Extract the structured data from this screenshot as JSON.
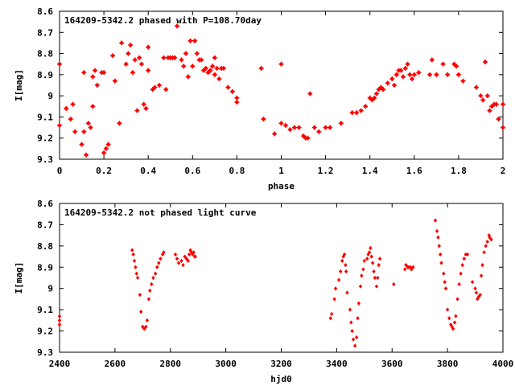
{
  "chart_data": [
    {
      "type": "scatter",
      "title": "164209-5342.2 phased with P=108.70day",
      "xlabel": "phase",
      "ylabel": "I[mag]",
      "xlim": [
        0,
        2
      ],
      "ylim": [
        8.6,
        9.3
      ],
      "y_inverted": true,
      "grid": false,
      "x_ticks": [
        "0",
        "0.2",
        "0.4",
        "0.6",
        "0.8",
        "1",
        "1.2",
        "1.4",
        "1.6",
        "1.8",
        "2"
      ],
      "y_ticks": [
        "8.6",
        "8.7",
        "8.8",
        "8.9",
        "9",
        "9.1",
        "9.2",
        "9.3"
      ],
      "marker_color": "#ff0000",
      "series": [
        {
          "x": [
            0.0,
            0.03,
            0.05,
            0.06,
            0.07,
            0.1,
            0.11,
            0.11,
            0.12,
            0.13,
            0.14,
            0.15,
            0.15,
            0.16,
            0.17,
            0.19,
            0.2,
            0.2,
            0.21,
            0.22,
            0.24,
            0.25,
            0.27,
            0.28,
            0.3,
            0.31,
            0.32,
            0.33,
            0.34,
            0.35,
            0.36,
            0.37,
            0.38,
            0.39,
            0.4,
            0.4,
            0.42,
            0.43,
            0.45,
            0.47,
            0.48,
            0.49,
            0.5,
            0.51,
            0.52,
            0.53,
            0.55,
            0.56,
            0.57,
            0.58,
            0.59,
            0.6,
            0.61,
            0.62,
            0.63,
            0.64,
            0.65,
            0.66,
            0.67,
            0.68,
            0.69,
            0.7,
            0.7,
            0.71,
            0.72,
            0.73,
            0.74,
            0.76,
            0.78,
            0.8,
            0.8,
            0.91,
            0.92,
            0.97,
            1.0,
            1.02,
            1.04,
            1.06,
            1.08,
            1.1,
            1.11,
            1.12,
            1.13,
            1.15,
            1.17,
            1.2,
            1.22,
            1.27,
            1.32,
            1.34,
            1.36,
            1.38,
            1.4,
            1.41,
            1.42,
            1.43,
            1.44,
            1.45,
            1.46,
            1.48,
            1.5,
            1.51,
            1.52,
            1.53,
            1.54,
            1.55,
            1.56,
            1.57,
            1.58,
            1.59,
            1.6,
            1.62,
            1.67,
            1.68,
            1.7,
            1.73,
            1.75,
            1.78,
            1.79,
            1.8,
            1.82,
            1.88,
            1.9,
            1.91,
            1.92,
            1.93,
            1.94,
            1.95,
            1.96,
            1.97,
            1.98,
            2.0,
            0.0,
            1.0,
            2.0
          ],
          "y": [
            8.85,
            9.06,
            9.11,
            9.04,
            9.17,
            9.23,
            8.89,
            9.17,
            9.28,
            9.13,
            9.15,
            8.91,
            9.05,
            8.88,
            8.95,
            8.89,
            9.27,
            8.89,
            9.25,
            9.23,
            8.81,
            8.93,
            9.13,
            8.75,
            8.85,
            8.8,
            8.76,
            8.89,
            8.83,
            9.07,
            8.82,
            8.85,
            9.04,
            9.06,
            8.88,
            8.77,
            8.97,
            8.96,
            8.95,
            8.82,
            8.97,
            8.82,
            8.82,
            8.82,
            8.82,
            8.67,
            8.83,
            8.86,
            8.8,
            8.91,
            8.74,
            8.86,
            8.74,
            8.8,
            8.83,
            8.83,
            8.88,
            8.87,
            8.89,
            8.88,
            8.86,
            8.9,
            8.82,
            8.87,
            8.92,
            8.87,
            8.87,
            8.96,
            8.98,
            9.01,
            9.03,
            8.87,
            9.11,
            9.18,
            9.13,
            9.14,
            9.16,
            9.15,
            9.15,
            9.19,
            9.2,
            9.2,
            8.99,
            9.15,
            9.17,
            9.15,
            9.15,
            9.13,
            9.08,
            9.08,
            9.07,
            9.05,
            9.01,
            9.02,
            9.01,
            8.99,
            8.97,
            8.96,
            8.97,
            8.94,
            8.92,
            8.95,
            8.9,
            8.88,
            8.88,
            8.91,
            8.87,
            8.85,
            8.9,
            8.92,
            8.9,
            8.89,
            8.9,
            8.83,
            8.9,
            8.85,
            8.9,
            8.85,
            8.86,
            8.9,
            8.93,
            8.96,
            9.0,
            9.02,
            8.84,
            9.0,
            9.07,
            9.05,
            9.04,
            9.04,
            9.11,
            9.04,
            9.14,
            8.85,
            9.15
          ]
        }
      ]
    },
    {
      "type": "scatter",
      "title": "164209-5342.2 not phased light curve",
      "xlabel": "hjd0",
      "ylabel": "I[mag]",
      "xlim": [
        2400,
        4000
      ],
      "ylim": [
        8.6,
        9.3
      ],
      "y_inverted": true,
      "grid": false,
      "x_ticks": [
        "2400",
        "2600",
        "2800",
        "3000",
        "3200",
        "3400",
        "3600",
        "3800",
        "4000"
      ],
      "y_ticks": [
        "8.6",
        "8.7",
        "8.8",
        "8.9",
        "9",
        "9.1",
        "9.2",
        "9.3"
      ],
      "marker_color": "#ff0000",
      "series": [
        {
          "x": [
            2400,
            2400,
            2400,
            2400,
            2662,
            2666,
            2670,
            2674,
            2678,
            2682,
            2690,
            2694,
            2700,
            2706,
            2712,
            2716,
            2722,
            2726,
            2732,
            2738,
            2746,
            2752,
            2758,
            2764,
            2772,
            2776,
            2818,
            2824,
            2830,
            2840,
            2846,
            2852,
            2858,
            2864,
            2868,
            2872,
            2876,
            2880,
            2884,
            2888,
            2890,
            3378,
            3382,
            3392,
            3396,
            3408,
            3414,
            3420,
            3424,
            3428,
            3432,
            3434,
            3438,
            3448,
            3452,
            3456,
            3460,
            3466,
            3472,
            3476,
            3480,
            3486,
            3490,
            3496,
            3500,
            3510,
            3514,
            3518,
            3522,
            3526,
            3530,
            3534,
            3538,
            3544,
            3548,
            3552,
            3556,
            3606,
            3646,
            3650,
            3656,
            3660,
            3666,
            3670,
            3676,
            3756,
            3762,
            3766,
            3770,
            3774,
            3778,
            3786,
            3790,
            3794,
            3800,
            3806,
            3812,
            3816,
            3820,
            3826,
            3830,
            3836,
            3842,
            3848,
            3854,
            3860,
            3866,
            3872,
            3890,
            3900,
            3904,
            3908,
            3912,
            3918,
            3922,
            3926,
            3932,
            3938,
            3944,
            3950,
            3952,
            3958
          ],
          "y": [
            9.13,
            9.15,
            9.17,
            9.17,
            8.82,
            8.84,
            8.87,
            8.9,
            8.93,
            8.95,
            9.03,
            9.11,
            9.18,
            9.19,
            9.18,
            9.15,
            9.05,
            9.01,
            8.98,
            8.95,
            8.93,
            8.9,
            8.88,
            8.86,
            8.84,
            8.83,
            8.84,
            8.86,
            8.88,
            8.87,
            8.89,
            8.85,
            8.86,
            8.87,
            8.84,
            8.82,
            8.83,
            8.84,
            8.83,
            8.85,
            8.85,
            9.14,
            9.12,
            9.05,
            9.0,
            8.96,
            8.92,
            8.87,
            8.85,
            8.84,
            8.89,
            8.92,
            9.02,
            9.1,
            9.16,
            9.2,
            9.24,
            9.27,
            9.23,
            9.14,
            9.07,
            8.99,
            8.94,
            8.91,
            8.87,
            8.86,
            8.84,
            8.83,
            8.81,
            8.85,
            8.88,
            8.92,
            8.95,
            8.99,
            8.95,
            8.89,
            8.86,
            8.98,
            8.91,
            8.89,
            8.9,
            8.9,
            8.9,
            8.91,
            8.9,
            8.68,
            8.73,
            8.76,
            8.8,
            8.84,
            8.88,
            8.93,
            8.97,
            9.0,
            9.1,
            9.14,
            9.17,
            9.18,
            9.19,
            9.16,
            9.13,
            9.05,
            8.98,
            8.93,
            8.89,
            8.86,
            8.84,
            8.84,
            8.97,
            9.0,
            9.02,
            9.05,
            9.04,
            9.03,
            8.94,
            8.89,
            8.83,
            8.8,
            8.78,
            8.75,
            8.76,
            8.77
          ]
        }
      ]
    }
  ]
}
